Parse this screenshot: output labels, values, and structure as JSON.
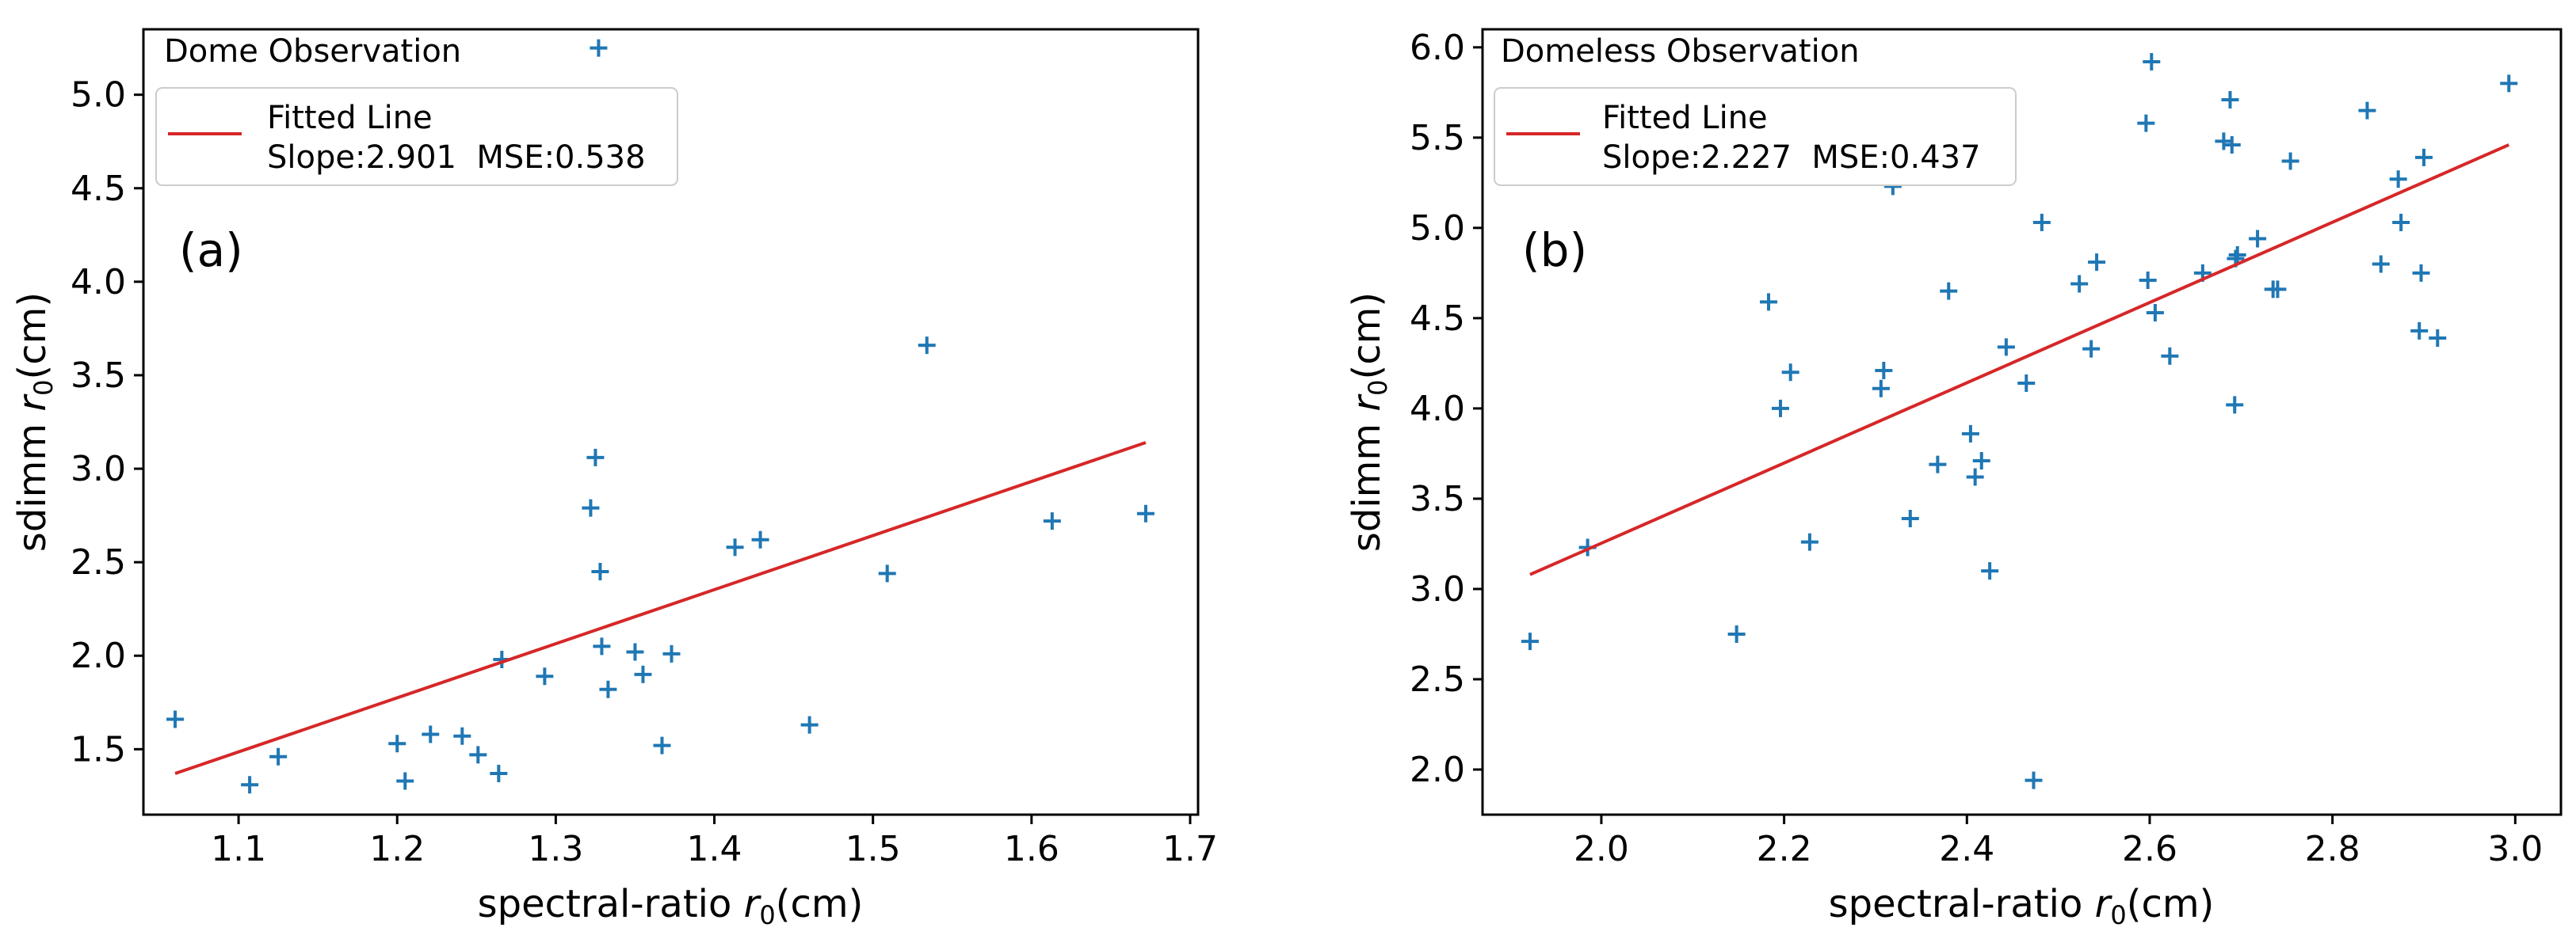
{
  "chart_data": [
    {
      "type": "scatter",
      "title": "Dome Observation",
      "panel_label": "(a)",
      "xlabel": "spectral-ratio",
      "ylabel": "sdimm",
      "r0_symbol": "r",
      "r0_subscript": "0",
      "unit": "(cm)",
      "xlim": [
        1.04,
        1.705
      ],
      "ylim": [
        1.15,
        5.35
      ],
      "xticks": [
        1.1,
        1.2,
        1.3,
        1.4,
        1.5,
        1.6,
        1.7
      ],
      "xtick_labels": [
        "1.1",
        "1.2",
        "1.3",
        "1.4",
        "1.5",
        "1.6",
        "1.7"
      ],
      "yticks": [
        1.5,
        2.0,
        2.5,
        3.0,
        3.5,
        4.0,
        4.5,
        5.0
      ],
      "ytick_labels": [
        "1.5",
        "2.0",
        "2.5",
        "3.0",
        "3.5",
        "4.0",
        "4.5",
        "5.0"
      ],
      "legend": {
        "position": "upper-left",
        "entry": "Fitted Line",
        "stats": "Slope:2.901  MSE:0.538"
      },
      "series": [
        {
          "name": "observations",
          "marker": "+",
          "color": "#1f77b4",
          "x": [
            1.06,
            1.107,
            1.125,
            1.2,
            1.205,
            1.221,
            1.241,
            1.251,
            1.264,
            1.266,
            1.293,
            1.322,
            1.325,
            1.327,
            1.328,
            1.329,
            1.333,
            1.35,
            1.355,
            1.367,
            1.373,
            1.413,
            1.429,
            1.46,
            1.509,
            1.534,
            1.613,
            1.672
          ],
          "y": [
            1.66,
            1.31,
            1.46,
            1.53,
            1.33,
            1.58,
            1.57,
            1.47,
            1.37,
            1.98,
            1.89,
            2.79,
            3.06,
            5.25,
            2.45,
            2.05,
            1.82,
            2.02,
            1.9,
            1.52,
            2.01,
            2.58,
            2.62,
            1.63,
            2.44,
            3.66,
            2.72,
            2.76
          ]
        },
        {
          "name": "Fitted Line",
          "type": "line",
          "color": "#d62728",
          "x": [
            1.06,
            1.672
          ],
          "y": [
            1.37,
            3.14
          ]
        }
      ]
    },
    {
      "type": "scatter",
      "title": "Domeless Observation",
      "panel_label": "(b)",
      "xlabel": "spectral-ratio",
      "ylabel": "sdimm",
      "r0_symbol": "r",
      "r0_subscript": "0",
      "unit": "(cm)",
      "xlim": [
        1.87,
        3.05
      ],
      "ylim": [
        1.75,
        6.1
      ],
      "xticks": [
        2.0,
        2.2,
        2.4,
        2.6,
        2.8,
        3.0
      ],
      "xtick_labels": [
        "2.0",
        "2.2",
        "2.4",
        "2.6",
        "2.8",
        "3.0"
      ],
      "yticks": [
        2.0,
        2.5,
        3.0,
        3.5,
        4.0,
        4.5,
        5.0,
        5.5,
        6.0
      ],
      "ytick_labels": [
        "2.0",
        "2.5",
        "3.0",
        "3.5",
        "4.0",
        "4.5",
        "5.0",
        "5.5",
        "6.0"
      ],
      "legend": {
        "position": "upper-left",
        "entry": "Fitted Line",
        "stats": "Slope:2.227  MSE:0.437"
      },
      "series": [
        {
          "name": "observations",
          "marker": "+",
          "color": "#1f77b4",
          "x": [
            1.922,
            1.985,
            2.148,
            2.183,
            2.196,
            2.207,
            2.228,
            2.306,
            2.309,
            2.319,
            2.338,
            2.368,
            2.38,
            2.404,
            2.409,
            2.416,
            2.425,
            2.443,
            2.465,
            2.473,
            2.482,
            2.523,
            2.536,
            2.542,
            2.596,
            2.598,
            2.602,
            2.606,
            2.622,
            2.658,
            2.681,
            2.688,
            2.69,
            2.693,
            2.694,
            2.696,
            2.718,
            2.735,
            2.74,
            2.754,
            2.838,
            2.853,
            2.872,
            2.875,
            2.895,
            2.897,
            2.9,
            2.915,
            2.993
          ],
          "y": [
            2.71,
            3.23,
            2.75,
            4.59,
            4.0,
            4.2,
            3.26,
            4.11,
            4.21,
            5.23,
            3.39,
            3.69,
            4.65,
            3.86,
            3.62,
            3.71,
            3.1,
            4.34,
            4.14,
            1.94,
            5.03,
            4.69,
            4.33,
            4.81,
            5.58,
            4.71,
            5.92,
            4.53,
            4.29,
            4.75,
            5.48,
            5.71,
            5.46,
            4.02,
            4.83,
            4.85,
            4.94,
            4.66,
            4.66,
            5.37,
            5.65,
            4.8,
            5.27,
            5.03,
            4.43,
            4.75,
            5.39,
            4.39,
            5.8
          ]
        },
        {
          "name": "Fitted Line",
          "type": "line",
          "color": "#d62728",
          "x": [
            1.922,
            2.993
          ],
          "y": [
            3.08,
            5.46
          ]
        }
      ]
    }
  ]
}
